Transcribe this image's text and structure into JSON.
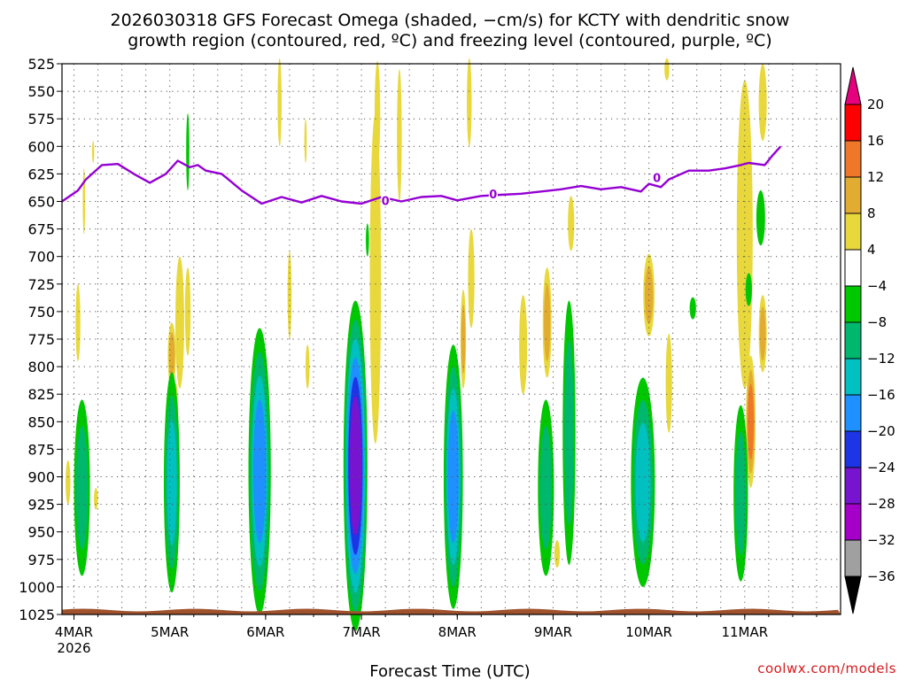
{
  "chart_data": {
    "type": "heatmap",
    "title_line1": "2026030318 GFS Forecast Omega (shaded, −cm/s) for KCTY with dendritic snow",
    "title_line2": "growth region (contoured, red, ºC) and freezing level (contoured, purple, ºC)",
    "xlabel": "Forecast Time (UTC)",
    "credit": "coolwx.com/models",
    "x_range_hours": [
      0,
      195
    ],
    "y_levels": [
      "525",
      "550",
      "575",
      "600",
      "625",
      "650",
      "675",
      "700",
      "725",
      "750",
      "775",
      "800",
      "825",
      "850",
      "875",
      "900",
      "925",
      "950",
      "975",
      "1000",
      "1025"
    ],
    "y_range_hPa": [
      525,
      1025
    ],
    "x_ticks": [
      {
        "hour": 3,
        "label": "4MAR",
        "sublabel": "2026"
      },
      {
        "hour": 27,
        "label": "5MAR"
      },
      {
        "hour": 51,
        "label": "6MAR"
      },
      {
        "hour": 75,
        "label": "7MAR"
      },
      {
        "hour": 99,
        "label": "8MAR"
      },
      {
        "hour": 123,
        "label": "9MAR"
      },
      {
        "hour": 147,
        "label": "10MAR"
      },
      {
        "hour": 171,
        "label": "11MAR"
      }
    ],
    "colorbar": {
      "ticks": [
        "20",
        "16",
        "12",
        "8",
        "4",
        "−4",
        "−8",
        "−12",
        "−16",
        "−20",
        "−24",
        "−28",
        "−32",
        "−36"
      ],
      "colors": [
        "#ff0000",
        "#f0762a",
        "#e2ac32",
        "#e8d83c",
        "#ffffff",
        "#00c800",
        "#00b76e",
        "#00c0c0",
        "#1e90ff",
        "#1c36e6",
        "#7614d0",
        "#a500c8",
        "#a0a0a0"
      ],
      "top_arrow_color": "#e6007e",
      "bottom_arrow_color": "#000000"
    },
    "freezing_level": {
      "label": "0",
      "color": "#9400d3",
      "points": [
        [
          0,
          650
        ],
        [
          4,
          640
        ],
        [
          6,
          630
        ],
        [
          10,
          617
        ],
        [
          14,
          616
        ],
        [
          18,
          625
        ],
        [
          22,
          633
        ],
        [
          26,
          625
        ],
        [
          29,
          613
        ],
        [
          32,
          619
        ],
        [
          34,
          617
        ],
        [
          36,
          622
        ],
        [
          40,
          625
        ],
        [
          45,
          640
        ],
        [
          50,
          652
        ],
        [
          55,
          646
        ],
        [
          60,
          651
        ],
        [
          65,
          645
        ],
        [
          70,
          650
        ],
        [
          75,
          652
        ],
        [
          80,
          646
        ],
        [
          85,
          650
        ],
        [
          90,
          646
        ],
        [
          95,
          645
        ],
        [
          99,
          649
        ],
        [
          105,
          645
        ],
        [
          110,
          644
        ],
        [
          115,
          643
        ],
        [
          120,
          641
        ],
        [
          125,
          639
        ],
        [
          130,
          636
        ],
        [
          135,
          639
        ],
        [
          140,
          637
        ],
        [
          145,
          641
        ],
        [
          147,
          634
        ],
        [
          150,
          637
        ],
        [
          152,
          630
        ],
        [
          157,
          622
        ],
        [
          162,
          622
        ],
        [
          166,
          620
        ],
        [
          170,
          617
        ],
        [
          172,
          615
        ],
        [
          176,
          617
        ],
        [
          178,
          608
        ],
        [
          180,
          600
        ]
      ]
    },
    "omega_blobs": [
      {
        "x": 5,
        "p": 910,
        "w": 2.0,
        "h": 160,
        "levels": [
          -8,
          -12
        ]
      },
      {
        "x": 27.5,
        "p": 905,
        "w": 2.0,
        "h": 200,
        "levels": [
          -8,
          -12,
          -16
        ]
      },
      {
        "x": 49.5,
        "p": 895,
        "w": 2.8,
        "h": 260,
        "levels": [
          -8,
          -12,
          -16,
          -20
        ]
      },
      {
        "x": 73.5,
        "p": 890,
        "w": 3.0,
        "h": 300,
        "levels": [
          -8,
          -12,
          -16,
          -20,
          -24,
          -28
        ]
      },
      {
        "x": 98,
        "p": 900,
        "w": 2.4,
        "h": 240,
        "levels": [
          -8,
          -12,
          -16,
          -20
        ]
      },
      {
        "x": 121.2,
        "p": 910,
        "w": 2.0,
        "h": 160,
        "levels": [
          -8,
          -12
        ]
      },
      {
        "x": 127.0,
        "p": 860,
        "w": 1.6,
        "h": 240,
        "levels": [
          -8,
          -12
        ]
      },
      {
        "x": 145.5,
        "p": 905,
        "w": 3.0,
        "h": 190,
        "levels": [
          -8,
          -12,
          -16
        ]
      },
      {
        "x": 170,
        "p": 915,
        "w": 1.8,
        "h": 160,
        "levels": [
          -8,
          -12
        ]
      },
      {
        "x": 175,
        "p": 665,
        "w": 1.1,
        "h": 50,
        "levels": [
          -4
        ]
      },
      {
        "x": 172,
        "p": 730,
        "w": 0.8,
        "h": 30,
        "levels": [
          -4
        ]
      },
      {
        "x": 158,
        "p": 747,
        "w": 0.8,
        "h": 20,
        "levels": [
          -4
        ]
      },
      {
        "x": 31.5,
        "p": 605,
        "w": 0.4,
        "h": 70,
        "levels": [
          -4
        ]
      },
      {
        "x": 76.5,
        "p": 685,
        "w": 0.4,
        "h": 30,
        "levels": [
          -4
        ]
      }
    ],
    "positive_blobs": [
      {
        "x": 54.5,
        "p": 560,
        "w": 0.5,
        "h": 80,
        "levels": [
          4
        ]
      },
      {
        "x": 79,
        "p": 570,
        "w": 0.7,
        "h": 95,
        "levels": [
          4
        ]
      },
      {
        "x": 84.5,
        "p": 590,
        "w": 0.6,
        "h": 120,
        "levels": [
          4
        ]
      },
      {
        "x": 78.5,
        "p": 720,
        "w": 1.4,
        "h": 300,
        "levels": [
          4
        ]
      },
      {
        "x": 29.5,
        "p": 760,
        "w": 1.1,
        "h": 120,
        "levels": [
          4
        ]
      },
      {
        "x": 27.5,
        "p": 790,
        "w": 1.0,
        "h": 60,
        "levels": [
          4,
          8
        ]
      },
      {
        "x": 28.5,
        "p": 845,
        "w": 0.6,
        "h": 60,
        "levels": [
          4,
          8
        ]
      },
      {
        "x": 31.5,
        "p": 750,
        "w": 0.7,
        "h": 80,
        "levels": [
          4
        ]
      },
      {
        "x": 4,
        "p": 760,
        "w": 0.6,
        "h": 70,
        "levels": [
          4
        ]
      },
      {
        "x": 1.5,
        "p": 905,
        "w": 0.6,
        "h": 40,
        "levels": [
          4
        ]
      },
      {
        "x": 8.5,
        "p": 920,
        "w": 0.5,
        "h": 20,
        "levels": [
          4
        ]
      },
      {
        "x": 100.5,
        "p": 775,
        "w": 0.7,
        "h": 90,
        "levels": [
          4,
          8
        ]
      },
      {
        "x": 102.5,
        "p": 720,
        "w": 0.8,
        "h": 90,
        "levels": [
          4
        ]
      },
      {
        "x": 102,
        "p": 560,
        "w": 0.6,
        "h": 80,
        "levels": [
          4
        ]
      },
      {
        "x": 115.5,
        "p": 780,
        "w": 1.0,
        "h": 90,
        "levels": [
          4
        ]
      },
      {
        "x": 121.5,
        "p": 760,
        "w": 1.1,
        "h": 100,
        "levels": [
          4,
          8
        ]
      },
      {
        "x": 127.5,
        "p": 670,
        "w": 0.8,
        "h": 50,
        "levels": [
          4
        ]
      },
      {
        "x": 124,
        "p": 970,
        "w": 0.7,
        "h": 25,
        "levels": [
          4
        ]
      },
      {
        "x": 147,
        "p": 735,
        "w": 1.4,
        "h": 75,
        "levels": [
          4,
          8
        ]
      },
      {
        "x": 152,
        "p": 815,
        "w": 0.8,
        "h": 90,
        "levels": [
          4
        ]
      },
      {
        "x": 151.5,
        "p": 530,
        "w": 0.6,
        "h": 20,
        "levels": [
          4
        ]
      },
      {
        "x": 171,
        "p": 680,
        "w": 2.0,
        "h": 280,
        "levels": [
          4
        ]
      },
      {
        "x": 175.5,
        "p": 560,
        "w": 1.0,
        "h": 70,
        "levels": [
          4
        ]
      },
      {
        "x": 175.5,
        "p": 770,
        "w": 1.0,
        "h": 70,
        "levels": [
          4,
          8
        ]
      },
      {
        "x": 172.5,
        "p": 850,
        "w": 1.2,
        "h": 120,
        "levels": [
          4,
          8,
          12
        ]
      },
      {
        "x": 61,
        "p": 595,
        "w": 0.3,
        "h": 40,
        "levels": [
          4
        ]
      },
      {
        "x": 57,
        "p": 735,
        "w": 0.5,
        "h": 80,
        "levels": [
          4
        ]
      },
      {
        "x": 61.5,
        "p": 800,
        "w": 0.5,
        "h": 40,
        "levels": [
          4
        ]
      },
      {
        "x": 5.5,
        "p": 650,
        "w": 0.3,
        "h": 60,
        "levels": [
          4
        ]
      },
      {
        "x": 7.8,
        "p": 605,
        "w": 0.2,
        "h": 20,
        "levels": [
          4
        ]
      }
    ]
  }
}
